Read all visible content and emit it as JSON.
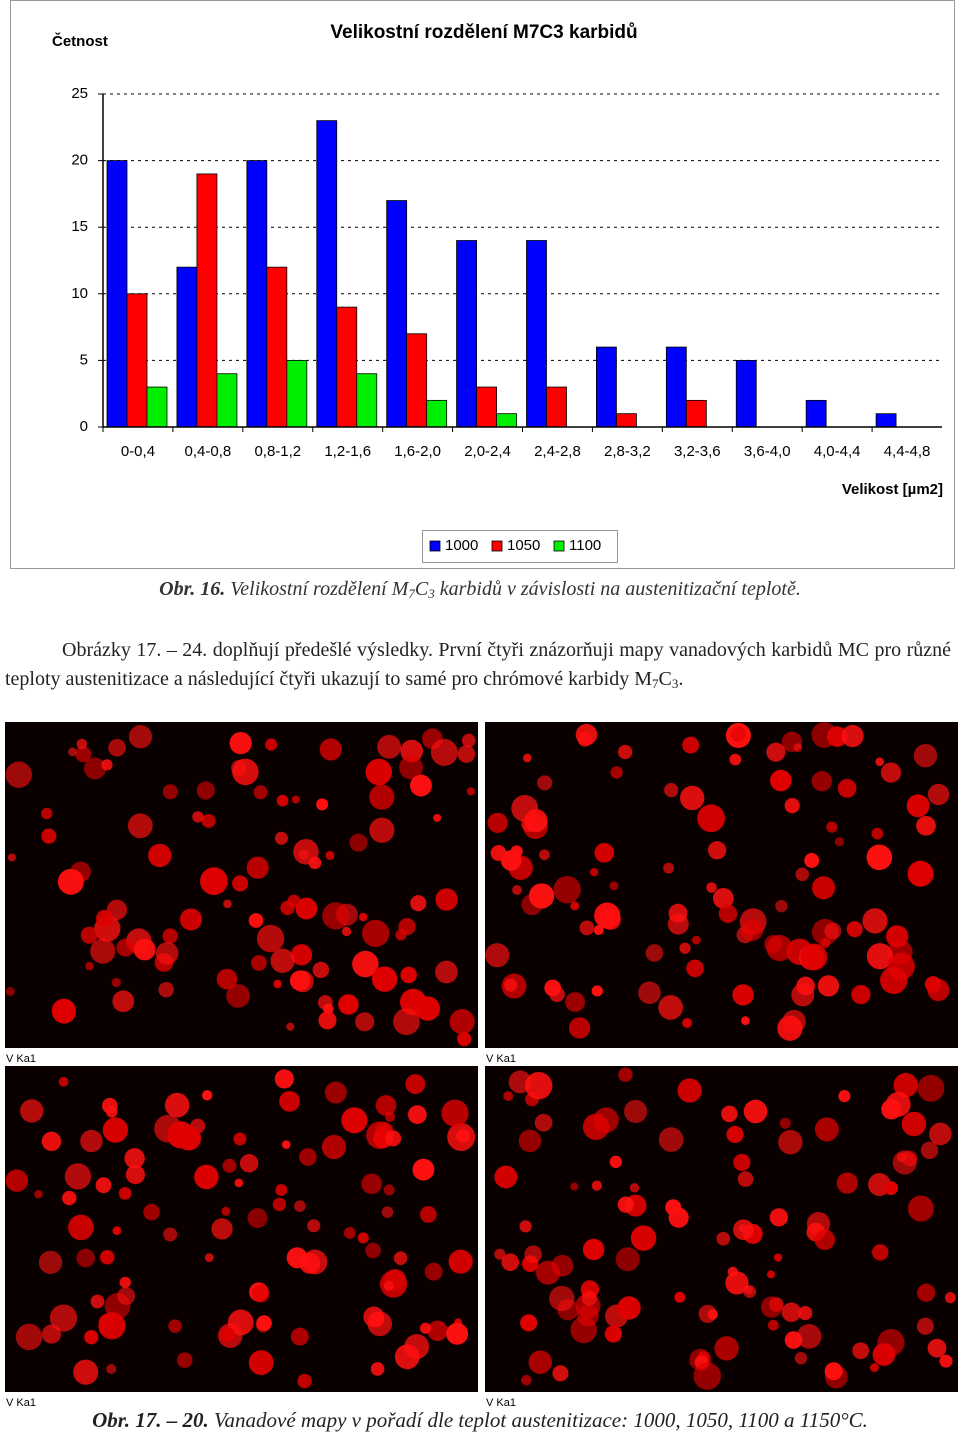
{
  "chart_data": {
    "type": "bar",
    "title": "Velikostní rozdělení M7C3 karbidů",
    "y_label": "Četnost",
    "x_label": "Velikost [µm2]",
    "categories": [
      "0-0,4",
      "0,4-0,8",
      "0,8-1,2",
      "1,2-1,6",
      "1,6-2,0",
      "2,0-2,4",
      "2,4-2,8",
      "2,8-3,2",
      "3,2-3,6",
      "3,6-4,0",
      "4,0-4,4",
      "4,4-4,8"
    ],
    "series": [
      {
        "name": "1000",
        "color": "#0000ff",
        "values": [
          20,
          12,
          20,
          23,
          17,
          14,
          14,
          6,
          6,
          5,
          2,
          1
        ]
      },
      {
        "name": "1050",
        "color": "#ff0000",
        "values": [
          10,
          19,
          12,
          9,
          7,
          3,
          3,
          1,
          2,
          0,
          0,
          0
        ]
      },
      {
        "name": "1100",
        "color": "#00ee00",
        "values": [
          3,
          4,
          5,
          4,
          2,
          1,
          0,
          0,
          0,
          0,
          0,
          0
        ]
      }
    ],
    "ylim": [
      0,
      25
    ],
    "yticks": [
      0,
      5,
      10,
      15,
      20,
      25
    ],
    "grid": true,
    "legend": "bottom"
  },
  "caption1": {
    "number": "Obr. 16.",
    "parts": [
      "Velikostní rozdělení M",
      "7",
      "C",
      "3",
      " karbidů v závislosti na austenitizační teplotě."
    ]
  },
  "paragraph": {
    "parts": [
      "Obrázky 17. – 24. doplňují předešlé výsledky. První čtyři znázorňuji mapy vanadových karbidů MC pro různé teploty austenitizace a následující čtyři ukazují to samé pro chrómové karbidy M",
      "7",
      "C",
      "3",
      "."
    ]
  },
  "images": [
    {
      "label": "V Ka1"
    },
    {
      "label": "V Ka1"
    },
    {
      "label": "V Ka1"
    },
    {
      "label": "V Ka1"
    }
  ],
  "caption2": {
    "number": "Obr. 17. – 20.",
    "text": "Vanadové mapy v pořadí dle teplot austenitizace: 1000, 1050, 1100 a 1150°C."
  }
}
